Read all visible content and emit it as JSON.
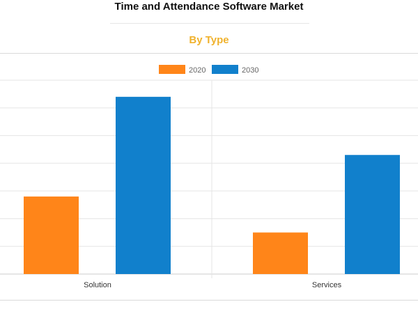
{
  "page": {
    "title": "Time and Attendance Software Market",
    "subtitle": "By Type"
  },
  "colors": {
    "accent": "#f0b22d",
    "series_2020": "#ff8519",
    "series_2030": "#1180cc",
    "grid": "#e5e5e5"
  },
  "chart_data": {
    "type": "bar",
    "title": "Time and Attendance Software Market",
    "subtitle": "By Type",
    "categories": [
      "Solution",
      "Services"
    ],
    "series": [
      {
        "name": "2020",
        "values": [
          2.8,
          1.5
        ]
      },
      {
        "name": "2030",
        "values": [
          6.4,
          4.3
        ]
      }
    ],
    "ylim": [
      0,
      7
    ],
    "grid": true,
    "legend": "top-center",
    "xlabel": "",
    "ylabel": ""
  }
}
